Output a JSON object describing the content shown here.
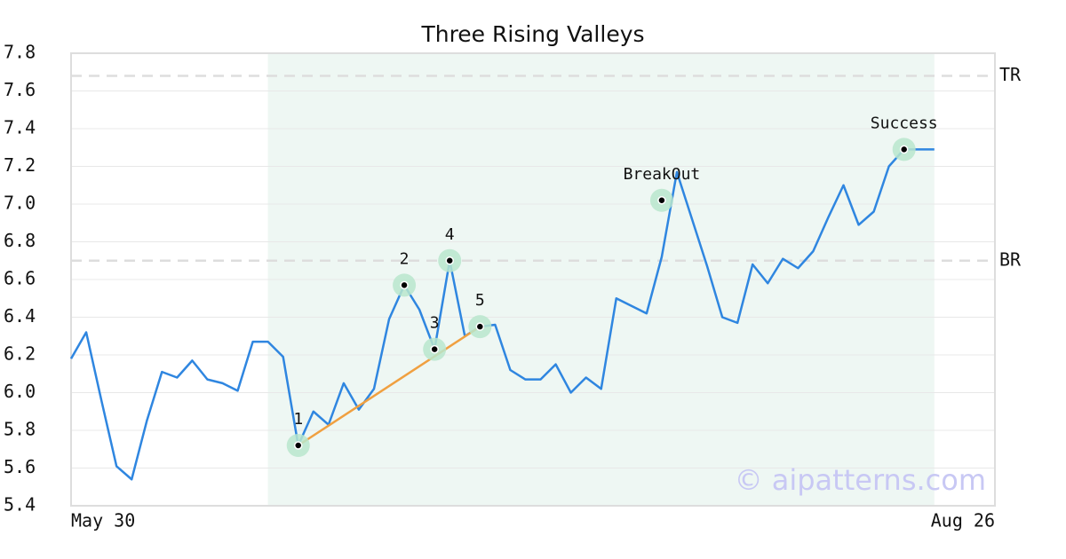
{
  "chart_data": {
    "type": "line",
    "title": "Three Rising Valleys",
    "categories": [
      "May 30",
      null,
      null,
      null,
      null,
      null,
      null,
      null,
      null,
      null,
      null,
      null,
      null,
      null,
      null,
      null,
      null,
      null,
      null,
      null,
      null,
      null,
      null,
      null,
      null,
      null,
      null,
      null,
      null,
      null,
      null,
      null,
      null,
      null,
      null,
      null,
      null,
      null,
      null,
      null,
      null,
      null,
      null,
      null,
      null,
      null,
      null,
      null,
      null,
      null,
      null,
      null,
      null,
      null,
      null,
      null,
      null,
      null,
      null,
      null,
      null,
      "Aug 26"
    ],
    "values": [
      6.18,
      6.32,
      5.96,
      5.61,
      5.54,
      5.85,
      6.11,
      6.08,
      6.17,
      6.07,
      6.05,
      6.01,
      6.27,
      6.27,
      6.19,
      5.72,
      5.9,
      5.83,
      6.05,
      5.91,
      6.02,
      6.39,
      6.57,
      6.44,
      6.23,
      6.7,
      6.3,
      6.35,
      6.36,
      6.12,
      6.07,
      6.07,
      6.15,
      6.0,
      6.08,
      6.02,
      6.5,
      6.46,
      6.42,
      6.72,
      7.17,
      6.92,
      6.67,
      6.4,
      6.37,
      6.68,
      6.58,
      6.71,
      6.66,
      6.75,
      6.93,
      7.1,
      6.89,
      6.96,
      7.2,
      7.29,
      7.29,
      7.29,
      null,
      null,
      null,
      null
    ],
    "color": "#2f86e0",
    "ylim": [
      5.4,
      7.8
    ],
    "yticks": [
      5.4,
      5.6,
      5.8,
      {
        "value": 6.0,
        "label": "6.0"
      },
      6.2,
      6.4,
      6.6,
      6.8,
      {
        "value": 7.0,
        "label": "7.0"
      },
      7.2,
      7.4,
      7.6,
      7.8
    ],
    "grid": true,
    "highlight": {
      "from": 13,
      "to": 57,
      "color": "#eef7f3"
    },
    "hlines": [
      {
        "label": "TR",
        "value": 7.68
      },
      {
        "label": "BR",
        "value": 6.7
      }
    ],
    "annotations": [
      {
        "label": "1",
        "index": 15,
        "value": 5.72
      },
      {
        "label": "2",
        "index": 22,
        "value": 6.57
      },
      {
        "label": "3",
        "index": 24,
        "value": 6.23
      },
      {
        "label": "4",
        "index": 25,
        "value": 6.7
      },
      {
        "label": "5",
        "index": 27,
        "value": 6.35
      },
      {
        "label": "BreakOut",
        "index": 39,
        "value": 7.02
      },
      {
        "label": "Success",
        "index": 55,
        "value": 7.29
      }
    ],
    "trendline": {
      "from": 0,
      "to": 4,
      "color": "#f0a040"
    },
    "watermark": "© aipatterns.com"
  }
}
